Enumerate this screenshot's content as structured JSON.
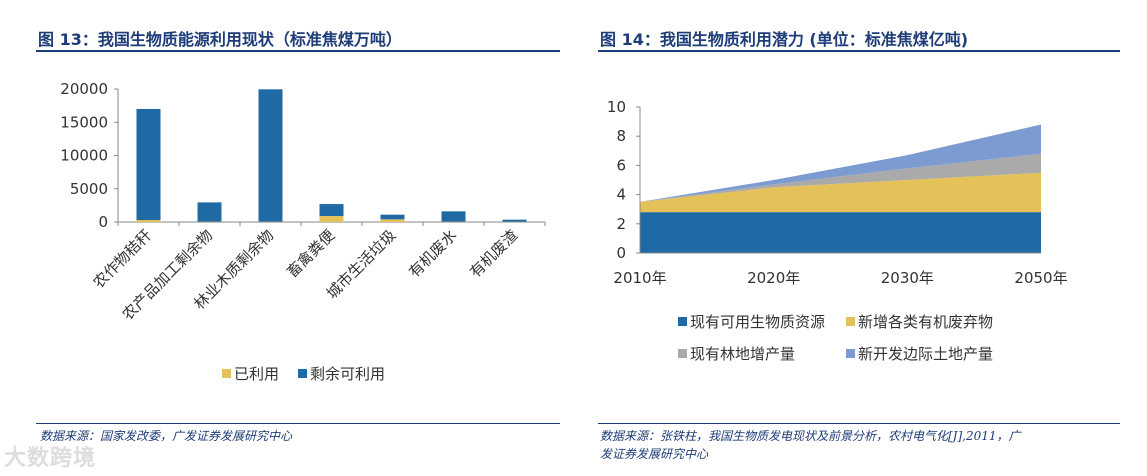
{
  "left": {
    "title": "图 13：我国生物质能源利用现状（标准焦煤万吨）",
    "source": "数据来源：国家发改委，广发证券发展研究中心"
  },
  "right": {
    "title": "图 14：我国生物质利用潜力 (单位：标准焦煤亿吨)",
    "source_line1": "数据来源：张铁柱，我国生物质发电现状及前景分析，农村电气化[J],2011，广",
    "source_line2": "发证券发展研究中心"
  },
  "watermark": "大数跨境",
  "colors": {
    "dark_blue": "#1f6aa5",
    "gold": "#e5c15a",
    "gray": "#aaaaaa",
    "light_blue": "#7c9bd1",
    "title_blue": "#1d3c78"
  },
  "chart_data": [
    {
      "type": "bar",
      "stacked": true,
      "categories": [
        "农作物秸秆",
        "农产品加工剩余物",
        "林业木质剩余物",
        "畜禽粪便",
        "城市生活垃圾",
        "有机废水",
        "有机废渣"
      ],
      "series": [
        {
          "name": "已利用",
          "color": "#e5c15a",
          "values": [
            300,
            50,
            50,
            900,
            400,
            50,
            50
          ]
        },
        {
          "name": "剩余可利用",
          "color": "#1f6aa5",
          "values": [
            16700,
            2900,
            19900,
            1800,
            700,
            1550,
            300
          ]
        }
      ],
      "ylim": [
        0,
        20000
      ],
      "yticks": [
        0,
        5000,
        10000,
        15000,
        20000
      ],
      "ytick_labels": [
        "0",
        "5000",
        "10000",
        "15000",
        "20000"
      ],
      "legend_position": "bottom"
    },
    {
      "type": "area",
      "stacked": true,
      "x": [
        "2010年",
        "2020年",
        "2030年",
        "2050年"
      ],
      "series": [
        {
          "name": "现有可用生物质资源",
          "color": "#1f6aa5",
          "values": [
            2.8,
            2.8,
            2.8,
            2.8
          ]
        },
        {
          "name": "新增各类有机废弃物",
          "color": "#e5c15a",
          "values": [
            0.7,
            1.7,
            2.2,
            2.7
          ]
        },
        {
          "name": "现有林地增产量",
          "color": "#aaaaaa",
          "values": [
            0.0,
            0.2,
            0.8,
            1.3
          ]
        },
        {
          "name": "新开发边际土地产量",
          "color": "#7c9bd1",
          "values": [
            0.0,
            0.3,
            0.9,
            2.0
          ]
        }
      ],
      "ylim": [
        0,
        10
      ],
      "yticks": [
        0,
        2,
        4,
        6,
        8,
        10
      ],
      "ytick_labels": [
        "0",
        "2",
        "4",
        "6",
        "8",
        "10"
      ],
      "legend_position": "bottom"
    }
  ]
}
